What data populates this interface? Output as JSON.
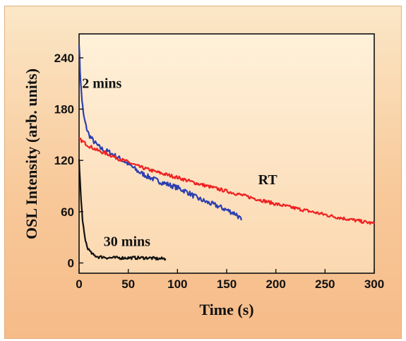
{
  "chart_data": {
    "type": "line",
    "xlabel": "Time (s)",
    "ylabel": "OSL Intensity (arb. units)",
    "xlim": [
      0,
      300
    ],
    "ylim": [
      -12,
      268
    ],
    "xticks": [
      0,
      50,
      100,
      150,
      200,
      250,
      300
    ],
    "yticks": [
      0,
      60,
      120,
      180,
      240
    ],
    "colors": {
      "2 mins": "#2c3fb0",
      "RT": "#ee2222",
      "30 mins": "#111111",
      "plot_bg": "#fde8c8"
    },
    "series": [
      {
        "name": "2 mins",
        "x": [
          0,
          1,
          2,
          3,
          4,
          5,
          7,
          10,
          15,
          20,
          25,
          30,
          40,
          50,
          60,
          70,
          80,
          90,
          100,
          110,
          120,
          130,
          140,
          150,
          160,
          165
        ],
        "y": [
          258,
          225,
          205,
          190,
          178,
          170,
          160,
          150,
          142,
          136,
          132,
          130,
          123,
          116,
          107,
          101,
          96,
          92,
          88,
          83,
          76,
          71,
          67,
          62,
          57,
          50
        ],
        "noise": 3
      },
      {
        "name": "RT",
        "x": [
          0,
          10,
          20,
          30,
          40,
          50,
          60,
          80,
          100,
          120,
          140,
          160,
          180,
          200,
          220,
          240,
          260,
          280,
          300
        ],
        "y": [
          145,
          137,
          131,
          127,
          122,
          118,
          113,
          106,
          100,
          93,
          87,
          81,
          75,
          69,
          64,
          59,
          54,
          50,
          46
        ],
        "noise": 2
      },
      {
        "name": "30 mins",
        "x": [
          0,
          1,
          2,
          3,
          4,
          5,
          6,
          7,
          8,
          10,
          12,
          15,
          20,
          25,
          30,
          40,
          50,
          60,
          70,
          80,
          88
        ],
        "y": [
          122,
          96,
          74,
          58,
          45,
          36,
          29,
          24,
          20,
          15,
          12,
          9,
          7,
          7,
          6,
          6,
          6,
          6,
          6,
          5,
          5
        ],
        "noise": 1.8
      }
    ]
  }
}
